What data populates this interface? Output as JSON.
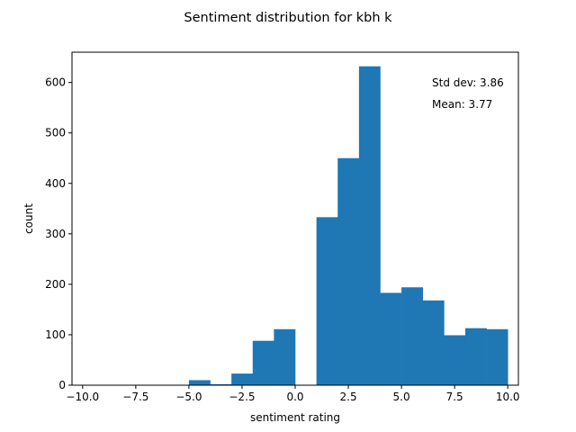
{
  "chart_data": {
    "type": "bar",
    "title": "Sentiment distribution for kbh k",
    "xlabel": "sentiment rating",
    "ylabel": "count",
    "xlim": [
      -10.5,
      10.5
    ],
    "ylim": [
      0,
      660
    ],
    "xticks": [
      -10.0,
      -7.5,
      -5.0,
      -2.5,
      0.0,
      2.5,
      5.0,
      7.5,
      10.0
    ],
    "xtick_labels": [
      "−10.0",
      "−7.5",
      "−5.0",
      "−2.5",
      "0.0",
      "2.5",
      "5.0",
      "7.5",
      "10.0"
    ],
    "yticks": [
      0,
      100,
      200,
      300,
      400,
      500,
      600
    ],
    "ytick_labels": [
      "0",
      "100",
      "200",
      "300",
      "400",
      "500",
      "600"
    ],
    "bins": [
      {
        "x0": -5.0,
        "x1": -4.0,
        "value": 10
      },
      {
        "x0": -4.0,
        "x1": -3.0,
        "value": 2
      },
      {
        "x0": -3.0,
        "x1": -2.0,
        "value": 23
      },
      {
        "x0": -2.0,
        "x1": -1.0,
        "value": 88
      },
      {
        "x0": -1.0,
        "x1": 0.0,
        "value": 111
      },
      {
        "x0": 0.0,
        "x1": 1.0,
        "value": 0
      },
      {
        "x0": 1.0,
        "x1": 2.0,
        "value": 333
      },
      {
        "x0": 2.0,
        "x1": 3.0,
        "value": 450
      },
      {
        "x0": 3.0,
        "x1": 4.0,
        "value": 632
      },
      {
        "x0": 4.0,
        "x1": 5.0,
        "value": 183
      },
      {
        "x0": 5.0,
        "x1": 6.0,
        "value": 194
      },
      {
        "x0": 6.0,
        "x1": 7.0,
        "value": 168
      },
      {
        "x0": 7.0,
        "x1": 8.0,
        "value": 99
      },
      {
        "x0": 8.0,
        "x1": 9.0,
        "value": 113
      },
      {
        "x0": 9.0,
        "x1": 10.0,
        "value": 111
      }
    ],
    "bar_color": "#1f77b4",
    "annotations": [
      "Std dev: 3.86",
      "Mean: 3.77"
    ],
    "grid": false,
    "legend": "none"
  }
}
